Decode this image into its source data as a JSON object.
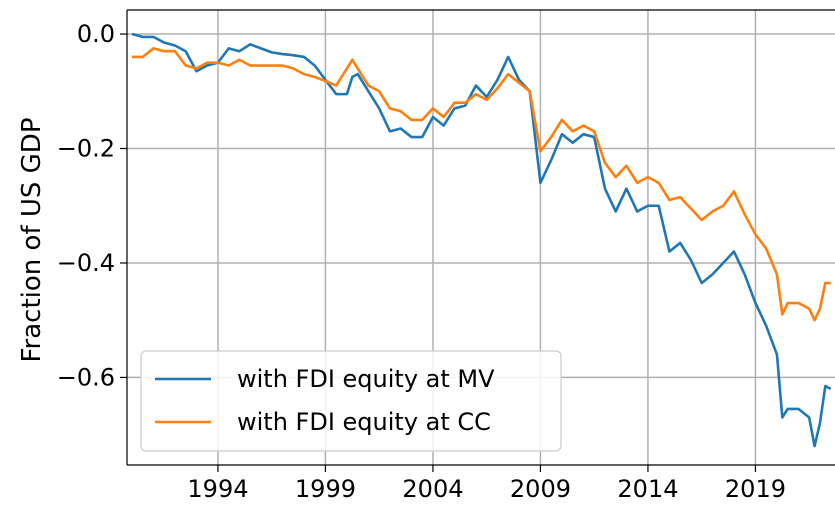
{
  "chart_data": {
    "type": "line",
    "ylabel": "Fraction of US GDP",
    "x": [
      1990,
      1990.5,
      1991,
      1991.5,
      1992,
      1992.5,
      1993,
      1993.5,
      1994,
      1994.5,
      1995,
      1995.5,
      1996,
      1996.5,
      1997,
      1997.5,
      1998,
      1998.5,
      1999,
      1999.5,
      2000,
      2000.25,
      2000.5,
      2001,
      2001.5,
      2002,
      2002.5,
      2003,
      2003.5,
      2004,
      2004.5,
      2005,
      2005.5,
      2006,
      2006.5,
      2007,
      2007.5,
      2008,
      2008.5,
      2009,
      2009.5,
      2010,
      2010.5,
      2011,
      2011.5,
      2012,
      2012.5,
      2013,
      2013.5,
      2014,
      2014.5,
      2015,
      2015.5,
      2016,
      2016.5,
      2017,
      2017.5,
      2018,
      2018.5,
      2019,
      2019.5,
      2020,
      2020.25,
      2020.5,
      2021,
      2021.5,
      2021.75,
      2022,
      2022.25,
      2022.5
    ],
    "series": [
      {
        "name": "with FDI equity at MV",
        "color": "#1f77b4",
        "values": [
          0,
          -0.005,
          -0.005,
          -0.015,
          -0.02,
          -0.03,
          -0.065,
          -0.055,
          -0.05,
          -0.025,
          -0.03,
          -0.018,
          -0.025,
          -0.032,
          -0.035,
          -0.037,
          -0.04,
          -0.055,
          -0.08,
          -0.105,
          -0.105,
          -0.075,
          -0.07,
          -0.1,
          -0.13,
          -0.17,
          -0.165,
          -0.18,
          -0.18,
          -0.145,
          -0.16,
          -0.13,
          -0.125,
          -0.09,
          -0.11,
          -0.08,
          -0.04,
          -0.08,
          -0.1,
          -0.26,
          -0.22,
          -0.175,
          -0.19,
          -0.175,
          -0.18,
          -0.27,
          -0.31,
          -0.27,
          -0.31,
          -0.3,
          -0.3,
          -0.38,
          -0.365,
          -0.395,
          -0.435,
          -0.42,
          -0.4,
          -0.38,
          -0.42,
          -0.47,
          -0.51,
          -0.56,
          -0.67,
          -0.655,
          -0.655,
          -0.67,
          -0.72,
          -0.68,
          -0.615,
          -0.62
        ]
      },
      {
        "name": "with FDI equity at CC",
        "color": "#ff7f0e",
        "values": [
          -0.04,
          -0.04,
          -0.025,
          -0.03,
          -0.03,
          -0.055,
          -0.06,
          -0.05,
          -0.05,
          -0.055,
          -0.045,
          -0.055,
          -0.055,
          -0.055,
          -0.055,
          -0.06,
          -0.07,
          -0.075,
          -0.082,
          -0.09,
          -0.06,
          -0.045,
          -0.06,
          -0.09,
          -0.1,
          -0.13,
          -0.135,
          -0.15,
          -0.15,
          -0.13,
          -0.145,
          -0.12,
          -0.12,
          -0.105,
          -0.115,
          -0.095,
          -0.07,
          -0.085,
          -0.1,
          -0.205,
          -0.18,
          -0.15,
          -0.17,
          -0.16,
          -0.17,
          -0.225,
          -0.25,
          -0.23,
          -0.26,
          -0.25,
          -0.26,
          -0.29,
          -0.285,
          -0.305,
          -0.325,
          -0.31,
          -0.3,
          -0.275,
          -0.315,
          -0.35,
          -0.375,
          -0.42,
          -0.49,
          -0.47,
          -0.47,
          -0.48,
          -0.5,
          -0.48,
          -0.435,
          -0.435
        ]
      }
    ],
    "xlim": [
      1989.77,
      2022.7
    ],
    "ylim": [
      -0.753,
      0.042
    ],
    "xticks": [
      1994,
      1999,
      2004,
      2009,
      2014,
      2019
    ],
    "yticks": [
      {
        "value": 0,
        "label": "0.0"
      },
      {
        "value": -0.2,
        "label": "−0.2"
      },
      {
        "value": -0.4,
        "label": "−0.4"
      },
      {
        "value": -0.6,
        "label": "−0.6"
      }
    ],
    "grid": true,
    "legend": "lower left"
  }
}
